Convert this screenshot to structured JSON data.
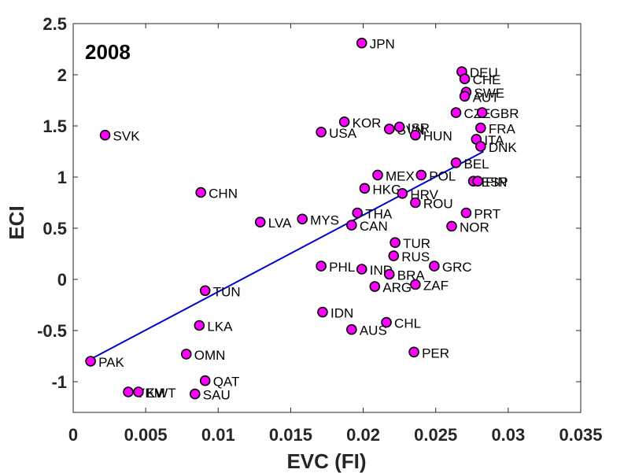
{
  "chart_data": {
    "type": "scatter",
    "title": "2008",
    "xlabel": "EVC (FI)",
    "ylabel": "ECI",
    "xlim": [
      0,
      0.035
    ],
    "ylim": [
      -1.3,
      2.5
    ],
    "xticks": [
      0,
      0.005,
      0.01,
      0.015,
      0.02,
      0.025,
      0.03,
      0.035
    ],
    "xtick_labels": [
      "0",
      "0.005",
      "0.01",
      "0.015",
      "0.02",
      "0.025",
      "0.03",
      "0.035"
    ],
    "yticks": [
      -1,
      -0.5,
      0,
      0.5,
      1,
      1.5,
      2,
      2.5
    ],
    "ytick_labels": [
      "-1",
      "-0.5",
      "0",
      "0.5",
      "1",
      "1.5",
      "2",
      "2.5"
    ],
    "grid": false,
    "marker_color": "#ff00ff",
    "marker_edge": "#000000",
    "fit_line_color": "#0000cc",
    "fit_line": {
      "x": [
        0.0012,
        0.0283
      ],
      "y": [
        -0.78,
        1.25
      ]
    },
    "points": [
      {
        "label": "JPN",
        "x": 0.0199,
        "y": 2.31
      },
      {
        "label": "DEU",
        "x": 0.0268,
        "y": 2.03
      },
      {
        "label": "CHE",
        "x": 0.027,
        "y": 1.96
      },
      {
        "label": "SWE",
        "x": 0.0271,
        "y": 1.83
      },
      {
        "label": "AUT",
        "x": 0.027,
        "y": 1.79
      },
      {
        "label": "CZE",
        "x": 0.0264,
        "y": 1.63
      },
      {
        "label": "GBR",
        "x": 0.0282,
        "y": 1.63
      },
      {
        "label": "KOR",
        "x": 0.0187,
        "y": 1.54
      },
      {
        "label": "SVN",
        "x": 0.0218,
        "y": 1.47
      },
      {
        "label": "ISR",
        "x": 0.0225,
        "y": 1.49
      },
      {
        "label": "USA",
        "x": 0.0171,
        "y": 1.44
      },
      {
        "label": "HUN",
        "x": 0.0236,
        "y": 1.41
      },
      {
        "label": "FRA",
        "x": 0.0281,
        "y": 1.48
      },
      {
        "label": "SVK",
        "x": 0.0022,
        "y": 1.41
      },
      {
        "label": "ITA",
        "x": 0.0278,
        "y": 1.37
      },
      {
        "label": "DNK",
        "x": 0.0281,
        "y": 1.3
      },
      {
        "label": "BEL",
        "x": 0.0264,
        "y": 1.14
      },
      {
        "label": "MEX",
        "x": 0.021,
        "y": 1.02
      },
      {
        "label": "POL",
        "x": 0.024,
        "y": 1.02
      },
      {
        "label": "ESP",
        "x": 0.0276,
        "y": 0.96
      },
      {
        "label": "FIN",
        "x": 0.0279,
        "y": 0.96
      },
      {
        "label": "HKG",
        "x": 0.0201,
        "y": 0.89
      },
      {
        "label": "HRV",
        "x": 0.0227,
        "y": 0.84
      },
      {
        "label": "CHN",
        "x": 0.0088,
        "y": 0.85
      },
      {
        "label": "ROU",
        "x": 0.0236,
        "y": 0.75
      },
      {
        "label": "PRT",
        "x": 0.0271,
        "y": 0.65
      },
      {
        "label": "THA",
        "x": 0.0196,
        "y": 0.65
      },
      {
        "label": "MYS",
        "x": 0.0158,
        "y": 0.59
      },
      {
        "label": "LVA",
        "x": 0.0129,
        "y": 0.56
      },
      {
        "label": "CAN",
        "x": 0.0192,
        "y": 0.53
      },
      {
        "label": "NOR",
        "x": 0.0261,
        "y": 0.52
      },
      {
        "label": "TUR",
        "x": 0.0222,
        "y": 0.36
      },
      {
        "label": "RUS",
        "x": 0.0221,
        "y": 0.23
      },
      {
        "label": "GRC",
        "x": 0.0249,
        "y": 0.13
      },
      {
        "label": "PHL",
        "x": 0.0171,
        "y": 0.13
      },
      {
        "label": "IND",
        "x": 0.0199,
        "y": 0.1
      },
      {
        "label": "BRA",
        "x": 0.0218,
        "y": 0.05
      },
      {
        "label": "ZAF",
        "x": 0.0236,
        "y": -0.05
      },
      {
        "label": "ARG",
        "x": 0.0208,
        "y": -0.07
      },
      {
        "label": "TUN",
        "x": 0.0091,
        "y": -0.11
      },
      {
        "label": "IDN",
        "x": 0.0172,
        "y": -0.32
      },
      {
        "label": "CHL",
        "x": 0.0216,
        "y": -0.42
      },
      {
        "label": "LKA",
        "x": 0.0087,
        "y": -0.45
      },
      {
        "label": "AUS",
        "x": 0.0192,
        "y": -0.49
      },
      {
        "label": "PER",
        "x": 0.0235,
        "y": -0.71
      },
      {
        "label": "OMN",
        "x": 0.0078,
        "y": -0.73
      },
      {
        "label": "PAK",
        "x": 0.0012,
        "y": -0.8
      },
      {
        "label": "QAT",
        "x": 0.0091,
        "y": -0.99
      },
      {
        "label": "YEM",
        "x": 0.0038,
        "y": -1.1
      },
      {
        "label": "KWT",
        "x": 0.0045,
        "y": -1.1
      },
      {
        "label": "SAU",
        "x": 0.0084,
        "y": -1.12
      }
    ]
  }
}
